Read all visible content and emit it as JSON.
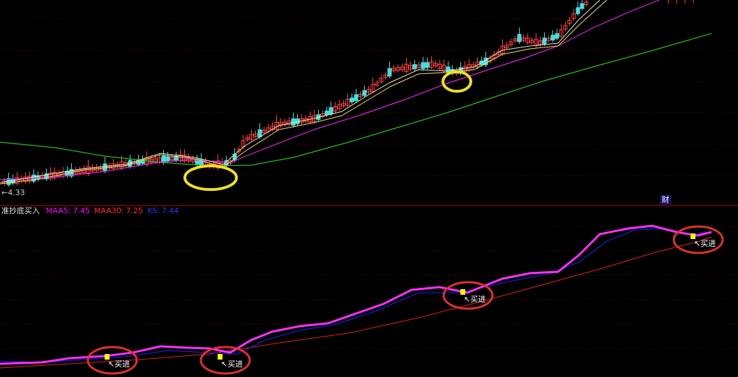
{
  "price_panel": {
    "low_price_label": "←4.33",
    "finance_marker": "财"
  },
  "indicator_panel": {
    "name": "准抄底买入",
    "legend": [
      {
        "label": "MAA5:",
        "value": 7.45,
        "color": "#ff00ff"
      },
      {
        "label": "MAA30:",
        "value": 7.25,
        "color": "#ff3030"
      },
      {
        "label": "KS:",
        "value": 7.44,
        "color": "#3030ff"
      }
    ],
    "signals": [
      "↖买进",
      "↖买进",
      "↖买进",
      "↖买进"
    ]
  }
}
